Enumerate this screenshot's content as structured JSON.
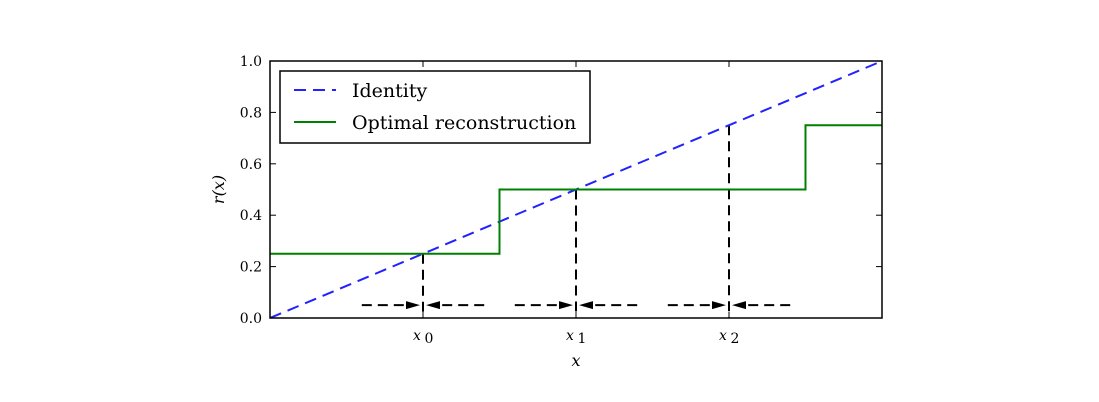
{
  "chart_data": {
    "type": "line",
    "xlabel": "x",
    "ylabel": "r(x)",
    "xlim": [
      0,
      1.2
    ],
    "ylim": [
      0,
      1.0
    ],
    "grid": false,
    "legend_placement": "top-left",
    "x_ticks": [
      {
        "value": 0.3,
        "label": "x",
        "sub": "0"
      },
      {
        "value": 0.6,
        "label": "x",
        "sub": "1"
      },
      {
        "value": 0.9,
        "label": "x",
        "sub": "2"
      }
    ],
    "y_ticks": [
      {
        "value": 0.0,
        "label": "0.0"
      },
      {
        "value": 0.2,
        "label": "0.2"
      },
      {
        "value": 0.4,
        "label": "0.4"
      },
      {
        "value": 0.6,
        "label": "0.6"
      },
      {
        "value": 0.8,
        "label": "0.8"
      },
      {
        "value": 1.0,
        "label": "1.0"
      }
    ],
    "series": [
      {
        "name": "Identity",
        "color": "#2222ff",
        "style": "dashed",
        "x": [
          0,
          1.2
        ],
        "y": [
          0,
          1.0
        ]
      },
      {
        "name": "Optimal reconstruction",
        "color": "#008000",
        "style": "solid",
        "x": [
          0,
          0.45,
          0.45,
          0.75,
          0.75,
          1.05,
          1.05,
          1.2
        ],
        "y": [
          0.25,
          0.25,
          0.5,
          0.5,
          0.5,
          0.5,
          0.75,
          0.75
        ]
      }
    ],
    "guides": [
      {
        "x": 0.3,
        "y": 0.25
      },
      {
        "x": 0.6,
        "y": 0.5
      },
      {
        "x": 0.9,
        "y": 0.75
      }
    ],
    "arrows": [
      {
        "from": 0.18,
        "to": 0.3,
        "y": 0.05
      },
      {
        "from": 0.42,
        "to": 0.3,
        "y": 0.05
      },
      {
        "from": 0.48,
        "to": 0.6,
        "y": 0.05
      },
      {
        "from": 0.72,
        "to": 0.6,
        "y": 0.05
      },
      {
        "from": 0.78,
        "to": 0.9,
        "y": 0.05
      },
      {
        "from": 1.02,
        "to": 0.9,
        "y": 0.05
      }
    ]
  }
}
